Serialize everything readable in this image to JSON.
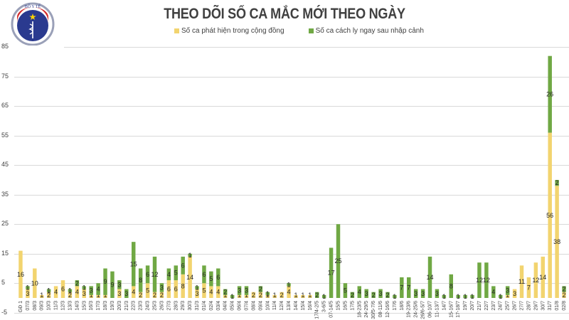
{
  "header": {
    "title": "THEO DÕI SỐ CA MẮC MỚI THEO NGÀY",
    "logo": {
      "top_text": "BỘ Y TẾ",
      "bottom_text": "MINISTRY OF HEALTH",
      "icon": "ministry-of-health-logo"
    }
  },
  "legend": [
    {
      "label": "Số ca phát hiện trong cộng đồng",
      "color": "#f2d46f"
    },
    {
      "label": "Số ca cách ly ngay sau nhập cảnh",
      "color": "#70a844"
    }
  ],
  "yaxis": {
    "ticks": [
      "85",
      "75",
      "65",
      "55",
      "45",
      "35",
      "25",
      "15",
      "5",
      "-5"
    ]
  },
  "chart_data": {
    "type": "bar",
    "stacked": true,
    "title": "THEO DÕI SỐ CA MẮC MỚI THEO NGÀY",
    "xlabel": "",
    "ylabel": "",
    "ylim": [
      -5,
      85
    ],
    "yticks": [
      -5,
      5,
      15,
      25,
      35,
      45,
      55,
      65,
      75,
      85
    ],
    "grid": true,
    "legend_position": "top",
    "categories": [
      "GĐ 1",
      "07/3",
      "08/3",
      "09/3",
      "10/3",
      "11/3",
      "12/3",
      "13/3",
      "14/3",
      "15/3",
      "16/3",
      "17/3",
      "18/3",
      "19/3",
      "20/3",
      "21/3",
      "22/3",
      "23/3",
      "24/3",
      "25/3",
      "26/3",
      "27/3",
      "28/3",
      "29/3",
      "30/3",
      "31/3",
      "01/4",
      "02/4",
      "03/4",
      "04/4",
      "05/4",
      "06/4",
      "07/4",
      "08/4",
      "09/4",
      "10/4",
      "11/4",
      "12/4",
      "13/4",
      "14/4",
      "15/4",
      "16/4",
      "17/4-2/5",
      "3-6/5",
      "07-14/5",
      "15/5",
      "16/5",
      "17/5",
      "18-23/5",
      "24-29/5",
      "30/5-7/6",
      "08-11/6",
      "12-16/6",
      "17/6",
      "18/6",
      "19-23/6",
      "24-25/6",
      "26/6-5/7",
      "06-10/7",
      "11-13/7",
      "14/7",
      "15-16/7",
      "17-18/7",
      "19/7",
      "20/7",
      "21/7",
      "22/7",
      "23/7",
      "24/7",
      "25/7",
      "26/7",
      "27/7",
      "28/7",
      "29/7",
      "30/7",
      "31/7",
      "01/8",
      "02/8"
    ],
    "series": [
      {
        "name": "Số ca phát hiện trong cộng đồng",
        "color": "#f2d46f",
        "values": [
          16,
          3,
          10,
          1,
          2,
          4,
          6,
          2,
          4,
          3,
          1,
          1,
          1,
          0,
          3,
          0,
          4,
          2,
          5,
          2,
          2,
          6,
          6,
          8,
          14,
          3,
          5,
          4,
          4,
          1,
          0,
          1,
          1,
          2,
          2,
          1,
          1,
          2,
          4,
          1,
          1,
          1,
          0,
          0,
          0,
          0,
          0,
          0,
          0,
          0,
          0,
          0,
          0,
          0,
          0,
          0,
          0,
          0,
          0,
          0,
          0,
          0,
          0,
          0,
          0,
          0,
          0,
          0,
          0,
          1,
          3,
          11,
          7,
          12,
          14,
          56,
          38,
          2
        ]
      },
      {
        "name": "Số ca cách ly ngay sau nhập cảnh",
        "color": "#70a844",
        "values": [
          0,
          1,
          0,
          0,
          1,
          0,
          0,
          1,
          2,
          1,
          3,
          4,
          9,
          9,
          3,
          3,
          15,
          8,
          6,
          12,
          3,
          4,
          5,
          6,
          1,
          1,
          6,
          5,
          6,
          2,
          1,
          3,
          3,
          0,
          2,
          1,
          0,
          0,
          1,
          0,
          0,
          0,
          2,
          1,
          17,
          25,
          5,
          2,
          4,
          3,
          2,
          3,
          2,
          1,
          7,
          7,
          3,
          3,
          14,
          3,
          1,
          8,
          1,
          1,
          1,
          12,
          12,
          4,
          1,
          3,
          0,
          0,
          0,
          0,
          0,
          26,
          2,
          2
        ]
      }
    ]
  }
}
